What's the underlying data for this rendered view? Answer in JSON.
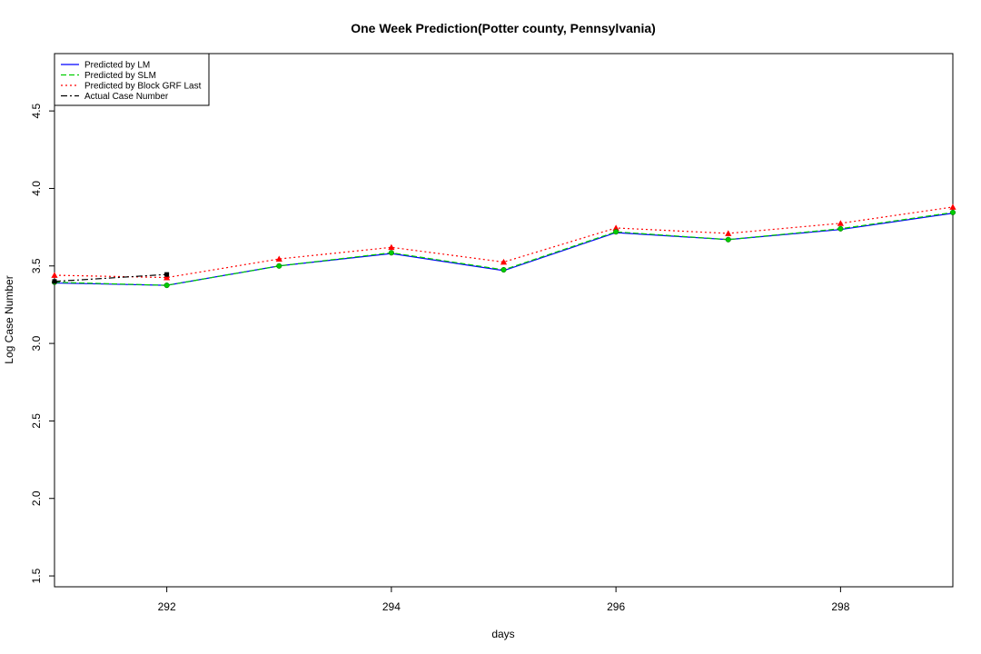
{
  "chart_data": {
    "type": "line",
    "title": "One Week Prediction(Potter county, Pennsylvania)",
    "xlabel": "days",
    "ylabel": "Log Case Number",
    "xlim": [
      291,
      299
    ],
    "ylim": [
      1.43,
      4.87
    ],
    "x_ticks": [
      292,
      294,
      296,
      298
    ],
    "y_ticks": [
      1.5,
      2.0,
      2.5,
      3.0,
      3.5,
      4.0,
      4.5
    ],
    "grid": false,
    "legend_position": "top-left",
    "series": [
      {
        "name": "Predicted by LM",
        "color": "#0000ff",
        "line_style": "solid",
        "marker": "none",
        "x": [
          291,
          292,
          293,
          294,
          295,
          296,
          297,
          298,
          299
        ],
        "y": [
          3.39,
          3.375,
          3.5,
          3.58,
          3.47,
          3.715,
          3.67,
          3.735,
          3.84
        ]
      },
      {
        "name": "Predicted by SLM",
        "color": "#00cd00",
        "line_style": "dashed",
        "marker": "circle",
        "x": [
          291,
          292,
          293,
          294,
          295,
          296,
          297,
          298,
          299
        ],
        "y": [
          3.395,
          3.375,
          3.5,
          3.585,
          3.475,
          3.72,
          3.67,
          3.74,
          3.845
        ]
      },
      {
        "name": "Predicted by Block GRF Last",
        "color": "#ff0000",
        "line_style": "dotted",
        "marker": "triangle",
        "x": [
          291,
          292,
          293,
          294,
          295,
          296,
          297,
          298,
          299
        ],
        "y": [
          3.44,
          3.425,
          3.545,
          3.62,
          3.525,
          3.745,
          3.71,
          3.775,
          3.88
        ]
      },
      {
        "name": "Actual Case Number",
        "color": "#000000",
        "line_style": "dashdot",
        "marker": "square",
        "x": [
          291,
          292
        ],
        "y": [
          3.4,
          3.445
        ]
      }
    ]
  }
}
